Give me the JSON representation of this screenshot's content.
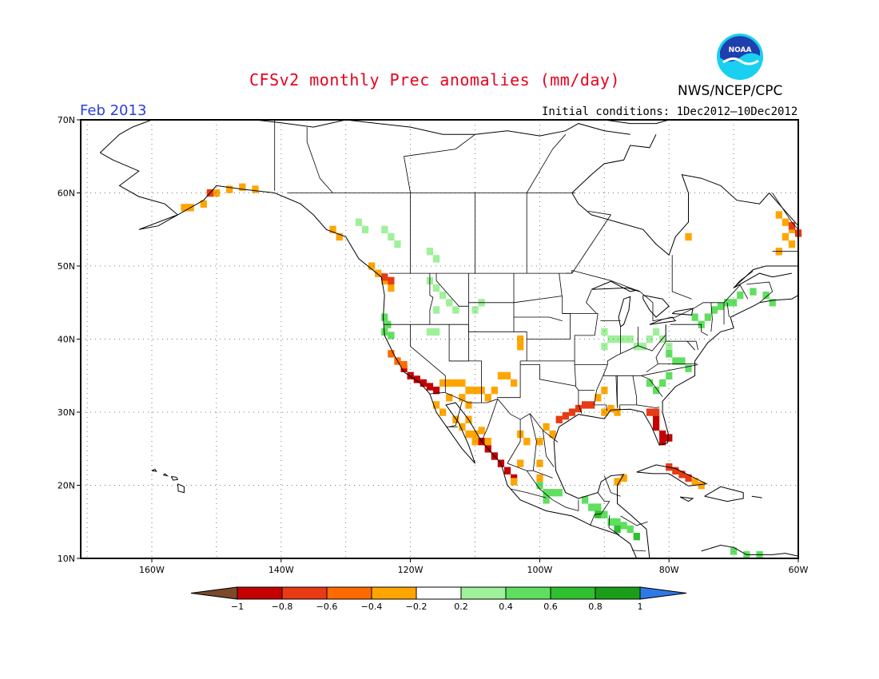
{
  "title": "CFSv2 monthly Prec anomalies (mm/day)",
  "agency": "NWS/NCEP/CPC",
  "logo_text": "NOAA",
  "valid_month": "Feb 2013",
  "initial_conditions": "Initial conditions: 1Dec2012—10Dec2012",
  "map": {
    "projection": "lat-lon",
    "lon_range": [
      -171,
      -60
    ],
    "lat_range": [
      10,
      70
    ],
    "lat_labels": [
      "10N",
      "20N",
      "30N",
      "40N",
      "50N",
      "60N",
      "70N"
    ],
    "lat_values": [
      10,
      20,
      30,
      40,
      50,
      60,
      70
    ],
    "lon_labels": [
      "160W",
      "140W",
      "120W",
      "100W",
      "80W",
      "60W"
    ],
    "lon_values": [
      -160,
      -140,
      -120,
      -100,
      -80,
      -60
    ],
    "gridlines": true
  },
  "colorbar": {
    "tick_labels": [
      "−1",
      "−0.8",
      "−0.6",
      "−0.4",
      "−0.2",
      "0.2",
      "0.4",
      "0.6",
      "0.8",
      "1"
    ],
    "colors": [
      "#7a4a2a",
      "#c40000",
      "#e83a14",
      "#ff6a00",
      "#ffa500",
      "#ffffff",
      "#9ff09a",
      "#5fdf5f",
      "#2fbf2f",
      "#1a9e1a",
      "#2f78e8"
    ]
  },
  "anomaly_regions": [
    {
      "name": "southern-alaska",
      "color": "#ffa500",
      "cells": [
        [
          -154,
          58
        ],
        [
          -152,
          58.5
        ],
        [
          -150,
          60
        ],
        [
          -148,
          60.5
        ],
        [
          -146,
          60.8
        ],
        [
          -144,
          60.5
        ],
        [
          -155,
          58
        ]
      ]
    },
    {
      "name": "alaska-core",
      "color": "#e83a14",
      "cells": [
        [
          -151,
          60
        ]
      ]
    },
    {
      "name": "bc-coast",
      "color": "#ffa500",
      "cells": [
        [
          -132,
          55
        ],
        [
          -131,
          54
        ],
        [
          -126,
          50
        ],
        [
          -125,
          49
        ],
        [
          -124,
          48
        ],
        [
          -123,
          47
        ]
      ]
    },
    {
      "name": "pacific-nw-red",
      "color": "#e83a14",
      "cells": [
        [
          -124,
          48.5
        ],
        [
          -123,
          48
        ]
      ]
    },
    {
      "name": "oregon-green",
      "color": "#5fdf5f",
      "cells": [
        [
          -124,
          43
        ],
        [
          -123.5,
          42
        ],
        [
          -124,
          41
        ],
        [
          -123,
          40.5
        ]
      ]
    },
    {
      "name": "california-red",
      "color": "#c40000",
      "cells": [
        [
          -121,
          36
        ],
        [
          -120,
          35
        ],
        [
          -119,
          34.5
        ],
        [
          -118,
          34
        ],
        [
          -117,
          33.5
        ],
        [
          -116,
          33
        ]
      ]
    },
    {
      "name": "california-orange",
      "color": "#ff6a00",
      "cells": [
        [
          -123,
          38
        ],
        [
          -122,
          37
        ],
        [
          -121,
          36.5
        ]
      ]
    },
    {
      "name": "southwest-orange",
      "color": "#ffa500",
      "cells": [
        [
          -115,
          34
        ],
        [
          -114,
          34
        ],
        [
          -113,
          34
        ],
        [
          -112,
          34
        ],
        [
          -111,
          33
        ],
        [
          -110,
          33
        ],
        [
          -109,
          33
        ],
        [
          -112,
          32
        ],
        [
          -114,
          32
        ],
        [
          -111,
          31
        ],
        [
          -108,
          32
        ],
        [
          -107,
          33
        ],
        [
          -106,
          35
        ],
        [
          -105,
          35
        ],
        [
          -104,
          34
        ]
      ]
    },
    {
      "name": "baja-orange",
      "color": "#ffa500",
      "cells": [
        [
          -113,
          29
        ],
        [
          -112,
          28
        ],
        [
          -111,
          27
        ],
        [
          -110,
          26
        ],
        [
          -115,
          30
        ],
        [
          -116,
          31
        ]
      ]
    },
    {
      "name": "mexico-pacific-red",
      "color": "#c40000",
      "cells": [
        [
          -108,
          25
        ],
        [
          -107,
          24
        ],
        [
          -106,
          23
        ],
        [
          -105,
          22
        ],
        [
          -104,
          21
        ],
        [
          -109,
          26
        ]
      ]
    },
    {
      "name": "mexico-pacific-orange",
      "color": "#ffa500",
      "cells": [
        [
          -110,
          27
        ],
        [
          -109,
          27.5
        ],
        [
          -108,
          26
        ],
        [
          -111,
          29
        ],
        [
          -103,
          23
        ],
        [
          -104,
          20.5
        ]
      ]
    },
    {
      "name": "gulf-texas-red",
      "color": "#e83a14",
      "cells": [
        [
          -97,
          29
        ],
        [
          -96,
          29.5
        ],
        [
          -95,
          30
        ],
        [
          -94,
          30.5
        ],
        [
          -93,
          31
        ],
        [
          -92,
          31
        ]
      ]
    },
    {
      "name": "gulf-orange",
      "color": "#ffa500",
      "cells": [
        [
          -99,
          28
        ],
        [
          -98,
          27
        ],
        [
          -90,
          30
        ],
        [
          -89,
          30.5
        ],
        [
          -88,
          30
        ],
        [
          -103,
          27
        ],
        [
          -102,
          26
        ],
        [
          -100,
          26
        ],
        [
          -100,
          23
        ],
        [
          -100,
          21
        ],
        [
          -91,
          32
        ],
        [
          -90,
          33
        ]
      ]
    },
    {
      "name": "florida-red",
      "color": "#c40000",
      "cells": [
        [
          -82,
          28
        ],
        [
          -81,
          27
        ],
        [
          -81,
          26
        ],
        [
          -80,
          26.5
        ],
        [
          -82,
          29
        ]
      ]
    },
    {
      "name": "florida-orange",
      "color": "#e83a14",
      "cells": [
        [
          -82,
          30
        ],
        [
          -83,
          30
        ]
      ]
    },
    {
      "name": "cuba-red",
      "color": "#e83a14",
      "cells": [
        [
          -80,
          22.5
        ],
        [
          -79,
          22
        ],
        [
          -78,
          21.5
        ],
        [
          -77,
          21
        ]
      ]
    },
    {
      "name": "caribbean-orange",
      "color": "#ffa500",
      "cells": [
        [
          -76,
          20.5
        ],
        [
          -75,
          20
        ],
        [
          -87,
          21
        ],
        [
          -88,
          20.5
        ]
      ]
    },
    {
      "name": "colorado-orange",
      "color": "#ffa500",
      "cells": [
        [
          -103,
          40
        ],
        [
          -103,
          39
        ]
      ]
    },
    {
      "name": "quebec-labrador-orange",
      "color": "#ffa500",
      "cells": [
        [
          -63,
          57
        ],
        [
          -62,
          56
        ],
        [
          -61,
          55
        ],
        [
          -62,
          54
        ],
        [
          -61,
          53
        ],
        [
          -63,
          52
        ],
        [
          -77,
          54
        ]
      ]
    },
    {
      "name": "labrador-red",
      "color": "#e83a14",
      "cells": [
        [
          -61,
          55.5
        ],
        [
          -60,
          54.5
        ]
      ]
    },
    {
      "name": "northwest-canada-green",
      "color": "#9ff09a",
      "cells": [
        [
          -128,
          56
        ],
        [
          -127,
          55
        ],
        [
          -124,
          55
        ],
        [
          -123,
          54
        ],
        [
          -122,
          53
        ],
        [
          -117,
          52
        ],
        [
          -116,
          51
        ]
      ]
    },
    {
      "name": "northern-rockies-green",
      "color": "#9ff09a",
      "cells": [
        [
          -117,
          48
        ],
        [
          -116,
          47
        ],
        [
          -115,
          46
        ],
        [
          -114,
          45
        ],
        [
          -113,
          44
        ],
        [
          -116,
          44
        ],
        [
          -110,
          44
        ],
        [
          -109,
          45
        ],
        [
          -117,
          41
        ],
        [
          -116,
          41
        ]
      ]
    },
    {
      "name": "ohio-valley-green",
      "color": "#9ff09a",
      "cells": [
        [
          -90,
          41
        ],
        [
          -89,
          40
        ],
        [
          -88,
          40
        ],
        [
          -87,
          40
        ],
        [
          -86,
          40
        ],
        [
          -85,
          39
        ],
        [
          -84,
          39
        ],
        [
          -83,
          40
        ],
        [
          -82,
          41
        ],
        [
          -81,
          40
        ],
        [
          -80,
          39
        ],
        [
          -90,
          39
        ]
      ]
    },
    {
      "name": "appalachian-green",
      "color": "#5fdf5f",
      "cells": [
        [
          -80,
          38
        ],
        [
          -79,
          37
        ],
        [
          -78,
          37
        ],
        [
          -77,
          36
        ],
        [
          -80,
          35
        ],
        [
          -81,
          34
        ],
        [
          -82,
          33
        ],
        [
          -83,
          34
        ]
      ]
    },
    {
      "name": "northeast-green",
      "color": "#5fdf5f",
      "cells": [
        [
          -75,
          42
        ],
        [
          -74,
          43
        ],
        [
          -73,
          44
        ],
        [
          -72,
          44.5
        ],
        [
          -71,
          45
        ],
        [
          -70,
          45
        ],
        [
          -69,
          46
        ],
        [
          -67,
          46.5
        ],
        [
          -65,
          46
        ],
        [
          -64,
          45
        ],
        [
          -76,
          43
        ]
      ]
    },
    {
      "name": "mexico-central-green",
      "color": "#5fdf5f",
      "cells": [
        [
          -100,
          20
        ],
        [
          -99,
          19
        ],
        [
          -98,
          19
        ],
        [
          -97,
          19
        ],
        [
          -99,
          18
        ],
        [
          -93,
          18
        ],
        [
          -92,
          17
        ],
        [
          -91,
          17
        ],
        [
          -90,
          16
        ],
        [
          -89,
          15
        ],
        [
          -88,
          15
        ],
        [
          -87,
          14.5
        ],
        [
          -86,
          14
        ]
      ]
    },
    {
      "name": "central-america-green",
      "color": "#2fbf2f",
      "cells": [
        [
          -91,
          16
        ],
        [
          -88,
          14
        ],
        [
          -85,
          13
        ]
      ]
    },
    {
      "name": "caribbean-green",
      "color": "#5fdf5f",
      "cells": [
        [
          -70,
          11
        ],
        [
          -68,
          10.5
        ],
        [
          -66,
          10.5
        ]
      ]
    }
  ]
}
